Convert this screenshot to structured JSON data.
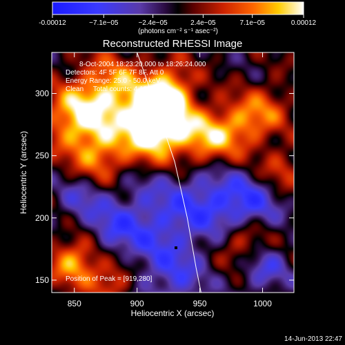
{
  "chart_data": {
    "type": "heatmap",
    "title": "Reconstructed RHESSI Image",
    "xlabel": "Heliocentric X (arcsec)",
    "ylabel": "Heliocentric Y (arcsec)",
    "xlim": [
      832,
      1025
    ],
    "ylim": [
      140,
      333
    ],
    "x_ticks": [
      850,
      900,
      950,
      1000
    ],
    "y_ticks": [
      150,
      200,
      250,
      300
    ],
    "colorbar": {
      "min": -0.00012,
      "max": 0.00012,
      "tick_values": [
        -0.00012,
        -7.1e-05,
        -2.4e-05,
        2.4e-05,
        7.1e-05,
        0.00012
      ],
      "tick_labels": [
        "-0.00012",
        "−7.1e−05",
        "−2.4e−05",
        "2.4e−05",
        "7.1e−05",
        "0.00012"
      ],
      "unit_label": "(photons cm⁻² s⁻¹ asec⁻²)"
    },
    "annotations": {
      "time_range": "8-Oct-2004 18:23:20.000 to 18:26:24.000",
      "detectors": "Detectors: 4F 5F 6F 7F 8F, Att 0",
      "energy_range": "Energy Range: 25.0 - 50.0 keV",
      "algorithm": "Clean     Total counts: 4.13E+03",
      "peak": "Position of Peak = [919,280]"
    },
    "peak_position": [
      919,
      280
    ],
    "limb_curve": [
      [
        900,
        333
      ],
      [
        915,
        290
      ],
      [
        930,
        245
      ],
      [
        940,
        200
      ],
      [
        947,
        160
      ],
      [
        951,
        140
      ]
    ],
    "blobs": [
      [
        919,
        282,
        14,
        1.0
      ],
      [
        912,
        268,
        18,
        0.85
      ],
      [
        880,
        300,
        20,
        0.8
      ],
      [
        850,
        280,
        18,
        0.75
      ],
      [
        870,
        250,
        16,
        0.6
      ],
      [
        955,
        265,
        16,
        0.75
      ],
      [
        985,
        275,
        15,
        0.55
      ],
      [
        1005,
        290,
        14,
        0.35
      ],
      [
        925,
        305,
        14,
        0.7
      ],
      [
        850,
        165,
        14,
        0.75
      ],
      [
        880,
        150,
        12,
        0.55
      ],
      [
        985,
        180,
        14,
        0.55
      ],
      [
        1015,
        240,
        12,
        0.4
      ],
      [
        915,
        195,
        30,
        -0.55
      ],
      [
        960,
        215,
        18,
        -0.45
      ],
      [
        990,
        210,
        16,
        -0.55
      ],
      [
        1000,
        160,
        14,
        -0.5
      ],
      [
        855,
        215,
        14,
        -0.35
      ],
      [
        930,
        150,
        16,
        -0.35
      ],
      [
        880,
        190,
        12,
        -0.3
      ]
    ]
  },
  "footer": {
    "date": "14-Jun-2013 22:47"
  }
}
